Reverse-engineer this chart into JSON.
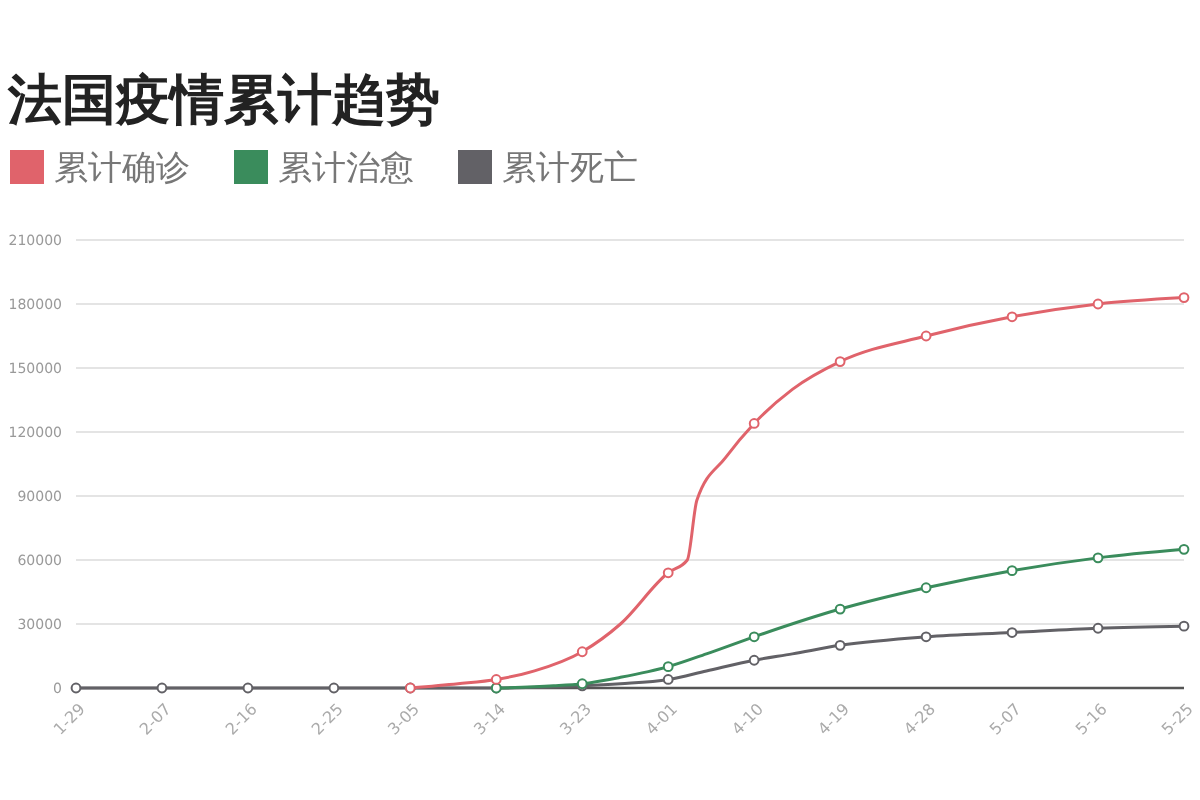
{
  "chart_data": {
    "type": "line",
    "title": "法国疫情累计趋势",
    "series": [
      {
        "name": "累计确诊",
        "color": "#e0636b",
        "x": [
          "--03-05",
          "--03-10",
          "--03-14",
          "--03-18",
          "--03-23",
          "--03-27",
          "--04-01",
          "--04-03",
          "--04-04",
          "--04-07",
          "--04-10",
          "--04-14",
          "--04-19",
          "--04-28",
          "--05-07",
          "--05-16",
          "--05-25"
        ],
        "values": [
          0,
          2000,
          4000,
          8000,
          17000,
          30000,
          54000,
          60000,
          88000,
          108000,
          124000,
          140000,
          153000,
          165000,
          174000,
          180000,
          183000
        ]
      },
      {
        "name": "累计治愈",
        "color": "#3a8c5c",
        "x": [
          "--03-14",
          "--03-20",
          "--03-23",
          "--03-27",
          "--04-01",
          "--04-05",
          "--04-10",
          "--04-19",
          "--04-28",
          "--05-07",
          "--05-16",
          "--05-25"
        ],
        "values": [
          0,
          1000,
          2000,
          5000,
          10000,
          16000,
          24000,
          37000,
          47000,
          55000,
          61000,
          65000
        ]
      },
      {
        "name": "累计死亡",
        "color": "#626166",
        "x": [
          "--01-29",
          "--02-07",
          "--02-16",
          "--02-25",
          "--03-05",
          "--03-14",
          "--03-23",
          "--03-27",
          "--04-01",
          "--04-05",
          "--04-10",
          "--04-14",
          "--04-19",
          "--04-28",
          "--05-07",
          "--05-16",
          "--05-25"
        ],
        "values": [
          0,
          0,
          0,
          0,
          0,
          0,
          1000,
          2000,
          4000,
          8000,
          13000,
          16000,
          20000,
          24000,
          26000,
          28000,
          29000
        ]
      }
    ],
    "xlim": [
      "--01-29",
      "--05-25"
    ],
    "xticks": [
      {
        "value": "--01-29",
        "label": "1-29"
      },
      {
        "value": "--02-07",
        "label": "2-07"
      },
      {
        "value": "--02-16",
        "label": "2-16"
      },
      {
        "value": "--02-25",
        "label": "2-25"
      },
      {
        "value": "--03-05",
        "label": "3-05"
      },
      {
        "value": "--03-14",
        "label": "3-14"
      },
      {
        "value": "--03-23",
        "label": "3-23"
      },
      {
        "value": "--04-01",
        "label": "4-01"
      },
      {
        "value": "--04-10",
        "label": "4-10"
      },
      {
        "value": "--04-19",
        "label": "4-19"
      },
      {
        "value": "--04-28",
        "label": "4-28"
      },
      {
        "value": "--05-07",
        "label": "5-07"
      },
      {
        "value": "--05-16",
        "label": "5-16"
      },
      {
        "value": "--05-25",
        "label": "5-25"
      }
    ],
    "ylim": [
      0,
      210000
    ],
    "yticks": [
      0,
      30000,
      60000,
      90000,
      120000,
      150000,
      180000,
      210000
    ],
    "grid": "y",
    "legend": "top left",
    "marker": "circle",
    "line_style": "solid"
  }
}
